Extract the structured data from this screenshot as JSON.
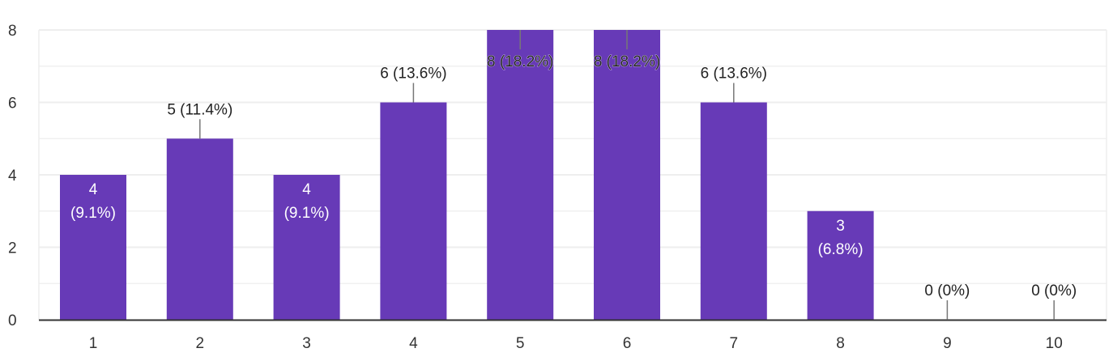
{
  "chart_data": {
    "type": "bar",
    "title": "",
    "xlabel": "",
    "ylabel": "",
    "categories": [
      "1",
      "2",
      "3",
      "4",
      "5",
      "6",
      "7",
      "8",
      "9",
      "10"
    ],
    "values": [
      4,
      5,
      4,
      6,
      8,
      8,
      6,
      3,
      0,
      0
    ],
    "data_labels": [
      "4 (9.1%)",
      "5 (11.4%)",
      "4 (9.1%)",
      "6 (13.6%)",
      "8 (18.2%)",
      "8 (18.2%)",
      "6 (13.6%)",
      "3 (6.8%)",
      "0 (0%)",
      "0 (0%)"
    ],
    "percent_labels": [
      "(9.1%)",
      "(11.4%)",
      "(9.1%)",
      "(13.6%)",
      "(18.2%)",
      "(18.2%)",
      "(13.6%)",
      "(6.8%)",
      "(0%)",
      "(0%)"
    ],
    "yticks": [
      0,
      2,
      4,
      6,
      8
    ],
    "ylim": [
      0,
      8
    ],
    "grid": true,
    "legend": "none",
    "colors": {
      "bar": "#673ab7",
      "grid": "#eeeeee",
      "axis": "#333333",
      "label_outside": "#222222",
      "label_inside": "#ffffff",
      "leader": "#777777"
    }
  }
}
